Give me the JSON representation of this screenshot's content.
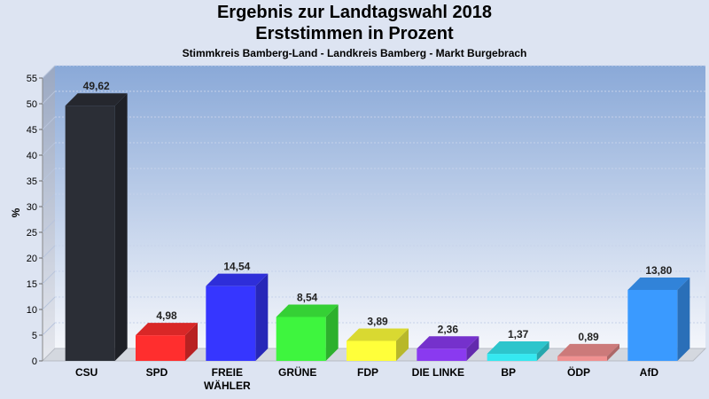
{
  "chart_data": {
    "type": "bar",
    "title": "Ergebnis zur Landtagswahl 2018",
    "title2": "Erststimmen in Prozent",
    "subtitle": "Stimmkreis Bamberg-Land - Landkreis Bamberg - Markt Burgebrach",
    "ylabel": "%",
    "ylim": [
      0,
      55
    ],
    "yticks": [
      0,
      5,
      10,
      15,
      20,
      25,
      30,
      35,
      40,
      45,
      50,
      55
    ],
    "categories": [
      "CSU",
      "SPD",
      "FREIE WÄHLER",
      "GRÜNE",
      "FDP",
      "DIE LINKE",
      "BP",
      "ÖDP",
      "AfD"
    ],
    "category_lines": [
      [
        "CSU"
      ],
      [
        "SPD"
      ],
      [
        "FREIE",
        "WÄHLER"
      ],
      [
        "GRÜNE"
      ],
      [
        "FDP"
      ],
      [
        "DIE LINKE"
      ],
      [
        "BP"
      ],
      [
        "ÖDP"
      ],
      [
        "AfD"
      ]
    ],
    "values": [
      49.62,
      4.98,
      14.54,
      8.54,
      3.89,
      2.36,
      1.37,
      0.89,
      13.8
    ],
    "value_labels": [
      "49,62",
      "4,98",
      "14,54",
      "8,54",
      "3,89",
      "2,36",
      "1,37",
      "0,89",
      "13,80"
    ],
    "colors": [
      "#2b2e36",
      "#ff2e2e",
      "#3636ff",
      "#3ef53e",
      "#ffff3a",
      "#8a3af0",
      "#35e8f0",
      "#f09090",
      "#3a9aff"
    ],
    "grid": true
  }
}
